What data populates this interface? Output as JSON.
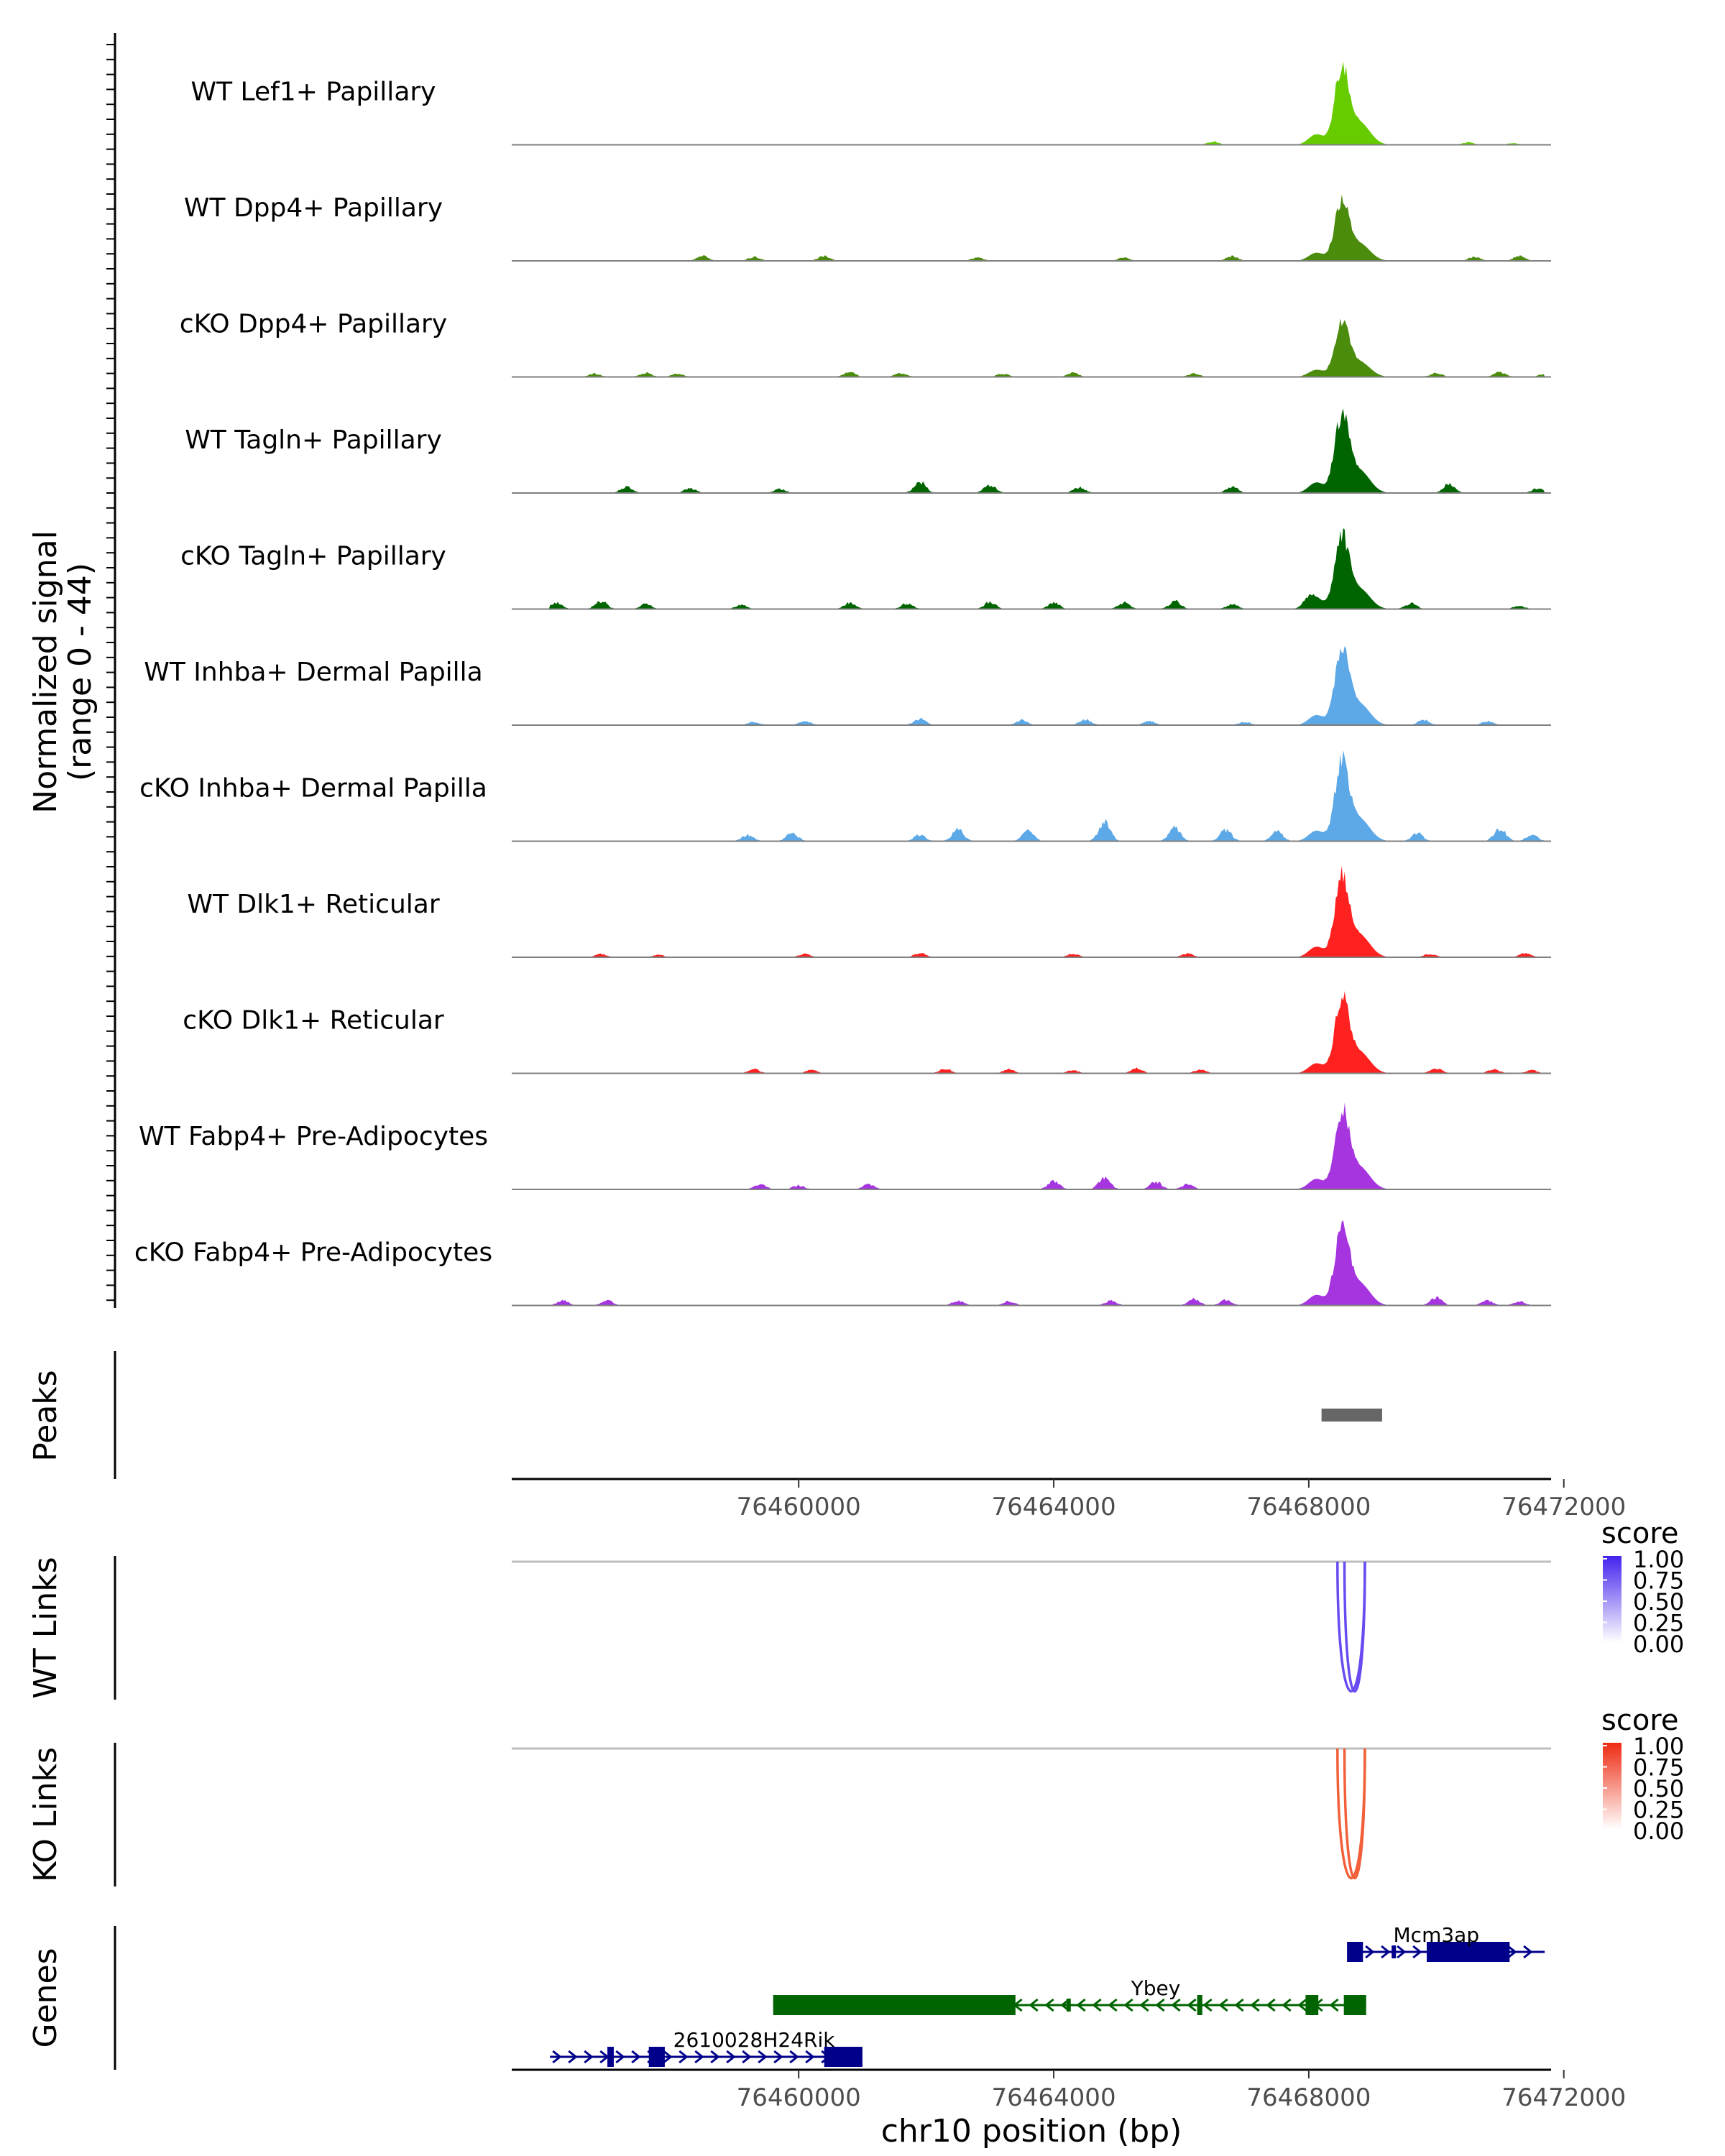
{
  "chart_data": {
    "type": "area",
    "title": "",
    "chromosome": "chr10",
    "xlabel": "chr10 position (bp)",
    "xlim": [
      76455500,
      76471800
    ],
    "x_ticks": [
      76460000,
      76464000,
      76468000,
      76472000
    ],
    "x_tick_labels": [
      "76460000",
      "76464000",
      "76468000",
      "76472000"
    ],
    "coverage": {
      "ylabel_line1": "Normalized signal",
      "ylabel_line2": "(range 0 - 44)",
      "ylim": [
        0,
        44
      ],
      "peak_center": 76468520,
      "tracks": [
        {
          "name": "WT Lef1+ Papillary",
          "color": "#66CC00",
          "peak": 44,
          "bumps": [
            [
              76466500,
              2
            ],
            [
              76470500,
              1.5
            ],
            [
              76471200,
              1
            ]
          ]
        },
        {
          "name": "WT Dpp4+ Papillary",
          "color": "#4C8C0D",
          "peak": 34,
          "bumps": [
            [
              76458500,
              3
            ],
            [
              76459300,
              2.5
            ],
            [
              76460400,
              3
            ],
            [
              76462800,
              2
            ],
            [
              76465100,
              2
            ],
            [
              76466800,
              3
            ],
            [
              76470600,
              2.5
            ],
            [
              76471300,
              3
            ]
          ]
        },
        {
          "name": "cKO Dpp4+ Papillary",
          "color": "#4C8C0D",
          "peak": 30,
          "bumps": [
            [
              76456800,
              2
            ],
            [
              76457600,
              2.5
            ],
            [
              76458100,
              2
            ],
            [
              76460800,
              3
            ],
            [
              76461600,
              2.5
            ],
            [
              76463200,
              2
            ],
            [
              76464300,
              2.5
            ],
            [
              76466200,
              2
            ],
            [
              76470000,
              2.5
            ],
            [
              76471000,
              3
            ],
            [
              76471700,
              2
            ]
          ]
        },
        {
          "name": "WT Tagln+ Papillary",
          "color": "#006400",
          "peak": 44,
          "bumps": [
            [
              76457300,
              4
            ],
            [
              76458300,
              3
            ],
            [
              76459700,
              2.5
            ],
            [
              76461900,
              7
            ],
            [
              76463000,
              5
            ],
            [
              76464400,
              3.5
            ],
            [
              76466800,
              4
            ],
            [
              76470200,
              6
            ],
            [
              76471600,
              3
            ]
          ]
        },
        {
          "name": "cKO Tagln+ Papillary",
          "color": "#006400",
          "peak": 40,
          "bumps": [
            [
              76456200,
              4
            ],
            [
              76456900,
              5
            ],
            [
              76457600,
              3
            ],
            [
              76459100,
              2.5
            ],
            [
              76460800,
              4
            ],
            [
              76461700,
              3.5
            ],
            [
              76463000,
              4.5
            ],
            [
              76464000,
              4
            ],
            [
              76465100,
              4
            ],
            [
              76465900,
              5
            ],
            [
              76466800,
              3
            ],
            [
              76468000,
              5
            ],
            [
              76469600,
              3.5
            ],
            [
              76471300,
              2
            ]
          ]
        },
        {
          "name": "WT Inhba+ Dermal Papilla",
          "color": "#5DA8E6",
          "peak": 42,
          "bumps": [
            [
              76459300,
              2
            ],
            [
              76460100,
              2.5
            ],
            [
              76461900,
              4
            ],
            [
              76463500,
              3
            ],
            [
              76464500,
              3.5
            ],
            [
              76465500,
              2.5
            ],
            [
              76467000,
              2
            ],
            [
              76469800,
              3.5
            ],
            [
              76470800,
              2.5
            ]
          ]
        },
        {
          "name": "cKO Inhba+ Dermal Papilla",
          "color": "#5DA8E6",
          "peak": 44,
          "bumps": [
            [
              76459200,
              4
            ],
            [
              76459900,
              5
            ],
            [
              76461900,
              4
            ],
            [
              76462500,
              7
            ],
            [
              76463600,
              6
            ],
            [
              76464800,
              12
            ],
            [
              76465900,
              8
            ],
            [
              76466700,
              7
            ],
            [
              76467500,
              6
            ],
            [
              76469700,
              5
            ],
            [
              76471000,
              8
            ],
            [
              76471500,
              4
            ]
          ]
        },
        {
          "name": "WT Dlk1+ Reticular",
          "color": "#FF2020",
          "peak": 44,
          "bumps": [
            [
              76456900,
              2
            ],
            [
              76457800,
              1.5
            ],
            [
              76460100,
              2
            ],
            [
              76461900,
              2.5
            ],
            [
              76464300,
              2
            ],
            [
              76466100,
              2.5
            ],
            [
              76469900,
              2
            ],
            [
              76471400,
              2.5
            ]
          ]
        },
        {
          "name": "cKO Dlk1+ Reticular",
          "color": "#FF2020",
          "peak": 42,
          "bumps": [
            [
              76459300,
              2.5
            ],
            [
              76460200,
              2
            ],
            [
              76462300,
              3
            ],
            [
              76463300,
              2.5
            ],
            [
              76464300,
              2
            ],
            [
              76465300,
              3
            ],
            [
              76466300,
              2.5
            ],
            [
              76470000,
              3
            ],
            [
              76470900,
              2.5
            ],
            [
              76471500,
              2
            ]
          ]
        },
        {
          "name": "WT Fabp4+ Pre-Adipocytes",
          "color": "#A635E0",
          "peak": 44,
          "bumps": [
            [
              76459400,
              3
            ],
            [
              76460000,
              2.5
            ],
            [
              76461100,
              3
            ],
            [
              76464000,
              5
            ],
            [
              76464800,
              7
            ],
            [
              76465600,
              5
            ],
            [
              76466100,
              3
            ]
          ]
        },
        {
          "name": "cKO Fabp4+ Pre-Adipocytes",
          "color": "#A635E0",
          "peak": 44,
          "bumps": [
            [
              76456300,
              3
            ],
            [
              76457000,
              3
            ],
            [
              76462500,
              3
            ],
            [
              76463300,
              2.5
            ],
            [
              76464900,
              3
            ],
            [
              76466200,
              4
            ],
            [
              76466700,
              3.5
            ],
            [
              76470000,
              5
            ],
            [
              76470800,
              3
            ],
            [
              76471300,
              2.5
            ]
          ]
        }
      ]
    },
    "peaks": {
      "label": "Peaks",
      "regions": [
        [
          76468200,
          76469150
        ]
      ],
      "color": "#666666"
    },
    "links": [
      {
        "label": "WT Links",
        "legend_title": "score",
        "legend_ticks": [
          "1.00",
          "0.75",
          "0.50",
          "0.25",
          "0.00"
        ],
        "color_high": "#4422EE",
        "color_low": "#FFFFFF",
        "arcs": [
          [
            76468450,
            76468880
          ],
          [
            76468560,
            76468880
          ]
        ],
        "arc_color": "#6A4BF0",
        "baseline_color": "#BEBEBE"
      },
      {
        "label": "KO Links",
        "legend_title": "score",
        "legend_ticks": [
          "1.00",
          "0.75",
          "0.50",
          "0.25",
          "0.00"
        ],
        "color_high": "#EE2A12",
        "color_low": "#FFFFFF",
        "arcs": [
          [
            76468450,
            76468880
          ],
          [
            76468560,
            76468880
          ]
        ],
        "arc_color": "#F2603A",
        "baseline_color": "#BEBEBE"
      }
    ],
    "genes": {
      "label": "Genes",
      "items": [
        {
          "name": "Mcm3ap",
          "strand": "+",
          "color": "#00008B",
          "start": 76468600,
          "end": 76471700,
          "row": 0,
          "label_x": 76470000,
          "exons": [
            [
              76468600,
              76468850,
              "thick"
            ],
            [
              76469300,
              76469330,
              "thin"
            ],
            [
              76469850,
              76471150,
              "thick"
            ]
          ]
        },
        {
          "name": "Ybey",
          "strand": "-",
          "color": "#006400",
          "start": 76459600,
          "end": 76468900,
          "row": 1,
          "label_x": 76465600,
          "exons": [
            [
              76459600,
              76463400,
              "thick"
            ],
            [
              76464200,
              76464240,
              "thin"
            ],
            [
              76466250,
              76466330,
              "thick"
            ],
            [
              76467950,
              76468150,
              "thick"
            ],
            [
              76468550,
              76468900,
              "thick"
            ]
          ]
        },
        {
          "name": "2610028H24Rik",
          "strand": "+",
          "color": "#00008B",
          "start": 76456100,
          "end": 76461000,
          "row": 2,
          "label_x": 76459300,
          "exons": [
            [
              76457000,
              76457100,
              "thick"
            ],
            [
              76457650,
              76457900,
              "thick"
            ],
            [
              76460400,
              76461000,
              "thick"
            ]
          ]
        }
      ]
    }
  }
}
